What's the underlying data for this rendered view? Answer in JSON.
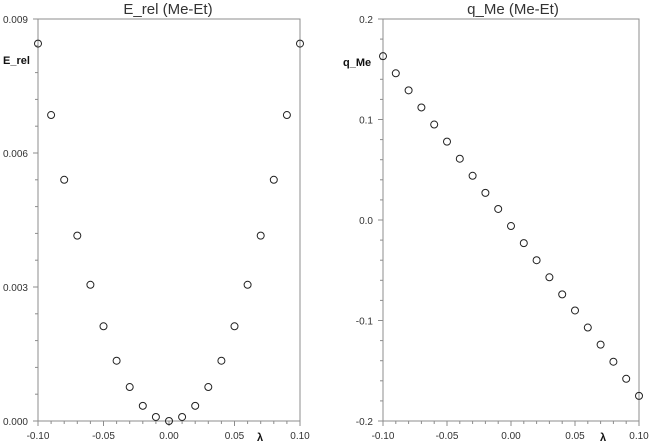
{
  "chart_data": [
    {
      "type": "scatter",
      "title": "E_rel (Me-Et)",
      "xlabel": "λ",
      "ylabel": "E_rel",
      "xlim": [
        -0.1,
        0.1
      ],
      "ylim": [
        0.0,
        0.009
      ],
      "xticks": [
        "-0.10",
        "-0.05",
        "0.00",
        "0.05",
        "0.10"
      ],
      "xtick_values": [
        -0.1,
        -0.05,
        0.0,
        0.05,
        0.1
      ],
      "yticks": [
        "0.000",
        "0.003",
        "0.006",
        "0.009"
      ],
      "ytick_values": [
        0.0,
        0.003,
        0.006,
        0.009
      ],
      "grid": false,
      "marker": "hollow-circle",
      "x": [
        -0.1,
        -0.09,
        -0.08,
        -0.07,
        -0.06,
        -0.05,
        -0.04,
        -0.03,
        -0.02,
        -0.01,
        0.0,
        0.01,
        0.02,
        0.03,
        0.04,
        0.05,
        0.06,
        0.07,
        0.08,
        0.09,
        0.1
      ],
      "y": [
        0.00845,
        0.00685,
        0.0054,
        0.00415,
        0.00305,
        0.00212,
        0.00135,
        0.00076,
        0.00034,
        9e-05,
        0.0,
        9e-05,
        0.00034,
        0.00076,
        0.00135,
        0.00212,
        0.00305,
        0.00415,
        0.0054,
        0.00685,
        0.00845
      ]
    },
    {
      "type": "scatter",
      "title": "q_Me (Me-Et)",
      "xlabel": "λ",
      "ylabel": "q_Me",
      "xlim": [
        -0.1,
        0.1
      ],
      "ylim": [
        -0.2,
        0.2
      ],
      "xticks": [
        "-0.10",
        "-0.05",
        "0.00",
        "0.05",
        "0.10"
      ],
      "xtick_values": [
        -0.1,
        -0.05,
        0.0,
        0.05,
        0.1
      ],
      "yticks": [
        "-0.2",
        "-0.1",
        "0.0",
        "0.1",
        "0.2"
      ],
      "ytick_values": [
        -0.2,
        -0.1,
        0.0,
        0.1,
        0.2
      ],
      "grid": false,
      "marker": "hollow-circle",
      "x": [
        -0.1,
        -0.09,
        -0.08,
        -0.07,
        -0.06,
        -0.05,
        -0.04,
        -0.03,
        -0.02,
        -0.01,
        0.0,
        0.01,
        0.02,
        0.03,
        0.04,
        0.05,
        0.06,
        0.07,
        0.08,
        0.09,
        0.1
      ],
      "y": [
        0.163,
        0.146,
        0.129,
        0.112,
        0.095,
        0.078,
        0.061,
        0.044,
        0.027,
        0.011,
        -0.006,
        -0.023,
        -0.04,
        -0.057,
        -0.074,
        -0.09,
        -0.107,
        -0.124,
        -0.141,
        -0.158,
        -0.175
      ]
    }
  ]
}
